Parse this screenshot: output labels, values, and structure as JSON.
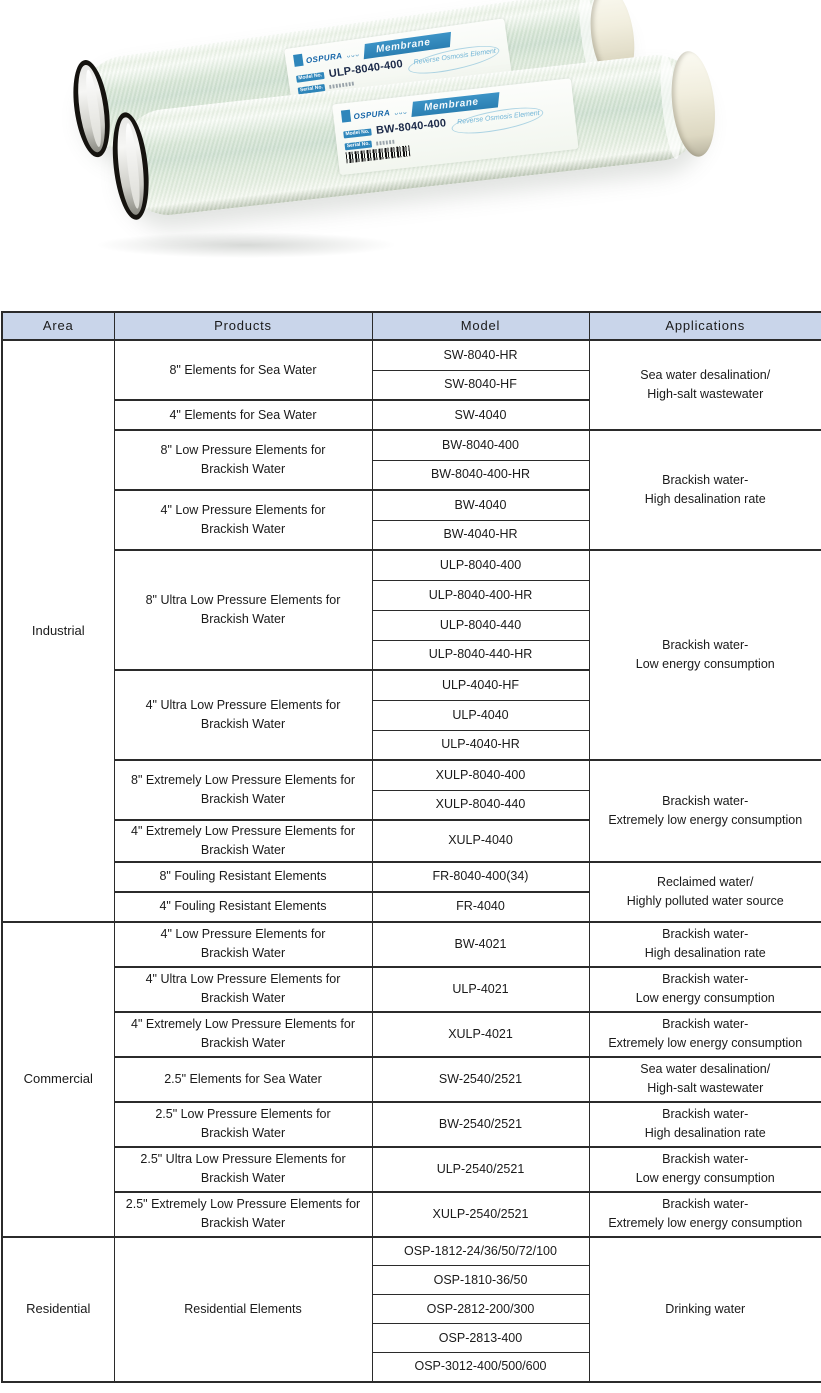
{
  "hero": {
    "membranes": [
      {
        "brand": "OSPURA",
        "band_label": "Membrane",
        "model_label": "Model No.",
        "model": "ULP-8040-400",
        "serial_label": "Serial No.",
        "subtitle": "Reverse Osmosis Element"
      },
      {
        "brand": "OSPURA",
        "band_label": "Membrane",
        "model_label": "Model No.",
        "model": "BW-8040-400",
        "serial_label": "Serial No.",
        "subtitle": "Reverse Osmosis Element"
      }
    ]
  },
  "table": {
    "headers": [
      "Area",
      "Products",
      "Model",
      "Applications"
    ],
    "colors": {
      "header_bg": "#c9d5ea",
      "border": "#2b2b2b",
      "label_band_blue": "#2e86bb",
      "brand_blue": "#1565a8"
    },
    "sections": [
      {
        "area": "Industrial",
        "blocks": [
          {
            "application": "Sea water desalination/\nHigh-salt wastewater",
            "groups": [
              {
                "product": "8\" Elements for Sea Water",
                "models": [
                  "SW-8040-HR",
                  "SW-8040-HF"
                ]
              },
              {
                "product": "4\" Elements for Sea Water",
                "models": [
                  "SW-4040"
                ]
              }
            ]
          },
          {
            "application": "Brackish water-\nHigh desalination rate",
            "groups": [
              {
                "product": "8\" Low Pressure Elements for\nBrackish Water",
                "models": [
                  "BW-8040-400",
                  "BW-8040-400-HR"
                ]
              },
              {
                "product": "4\" Low Pressure Elements for\nBrackish Water",
                "models": [
                  "BW-4040",
                  "BW-4040-HR"
                ]
              }
            ]
          },
          {
            "application": "Brackish water-\nLow energy consumption",
            "groups": [
              {
                "product": "8\" Ultra Low Pressure Elements for\nBrackish Water",
                "models": [
                  "ULP-8040-400",
                  "ULP-8040-400-HR",
                  "ULP-8040-440",
                  "ULP-8040-440-HR"
                ]
              },
              {
                "product": "4\" Ultra Low Pressure Elements for\nBrackish Water",
                "models": [
                  "ULP-4040-HF",
                  "ULP-4040",
                  "ULP-4040-HR"
                ]
              }
            ]
          },
          {
            "application": "Brackish water-\nExtremely low energy consumption",
            "groups": [
              {
                "product": "8\" Extremely Low Pressure Elements for\nBrackish Water",
                "models": [
                  "XULP-8040-400",
                  "XULP-8040-440"
                ]
              },
              {
                "product": "4\" Extremely Low Pressure Elements for\nBrackish Water",
                "models": [
                  "XULP-4040"
                ]
              }
            ]
          },
          {
            "application": "Reclaimed water/\nHighly polluted water source",
            "groups": [
              {
                "product": "8\" Fouling Resistant Elements",
                "models": [
                  "FR-8040-400(34)"
                ]
              },
              {
                "product": "4\" Fouling Resistant Elements",
                "models": [
                  "FR-4040"
                ]
              }
            ]
          }
        ]
      },
      {
        "area": "Commercial",
        "blocks": [
          {
            "application": "Brackish water-\nHigh desalination rate",
            "groups": [
              {
                "product": "4\" Low Pressure Elements for\nBrackish Water",
                "models": [
                  "BW-4021"
                ]
              }
            ]
          },
          {
            "application": "Brackish water-\nLow energy consumption",
            "groups": [
              {
                "product": "4\" Ultra Low Pressure Elements for\nBrackish Water",
                "models": [
                  "ULP-4021"
                ]
              }
            ]
          },
          {
            "application": "Brackish water-\nExtremely low energy consumption",
            "groups": [
              {
                "product": "4\" Extremely Low Pressure Elements for\nBrackish Water",
                "models": [
                  "XULP-4021"
                ]
              }
            ]
          },
          {
            "application": "Sea water desalination/\nHigh-salt wastewater",
            "groups": [
              {
                "product": "2.5\" Elements for Sea Water",
                "models": [
                  "SW-2540/2521"
                ]
              }
            ]
          },
          {
            "application": "Brackish water-\nHigh desalination rate",
            "groups": [
              {
                "product": "2.5\" Low Pressure Elements for\nBrackish Water",
                "models": [
                  "BW-2540/2521"
                ]
              }
            ]
          },
          {
            "application": "Brackish water-\nLow energy consumption",
            "groups": [
              {
                "product": "2.5\" Ultra Low Pressure Elements for\nBrackish Water",
                "models": [
                  "ULP-2540/2521"
                ]
              }
            ]
          },
          {
            "application": "Brackish water-\nExtremely low energy consumption",
            "groups": [
              {
                "product": "2.5\" Extremely Low Pressure Elements for\nBrackish Water",
                "models": [
                  "XULP-2540/2521"
                ]
              }
            ]
          }
        ]
      },
      {
        "area": "Residential",
        "blocks": [
          {
            "application": "Drinking water",
            "groups": [
              {
                "product": "Residential Elements",
                "models": [
                  "OSP-1812-24/36/50/72/100",
                  "OSP-1810-36/50",
                  "OSP-2812-200/300",
                  "OSP-2813-400",
                  "OSP-3012-400/500/600"
                ]
              }
            ]
          }
        ]
      }
    ]
  }
}
